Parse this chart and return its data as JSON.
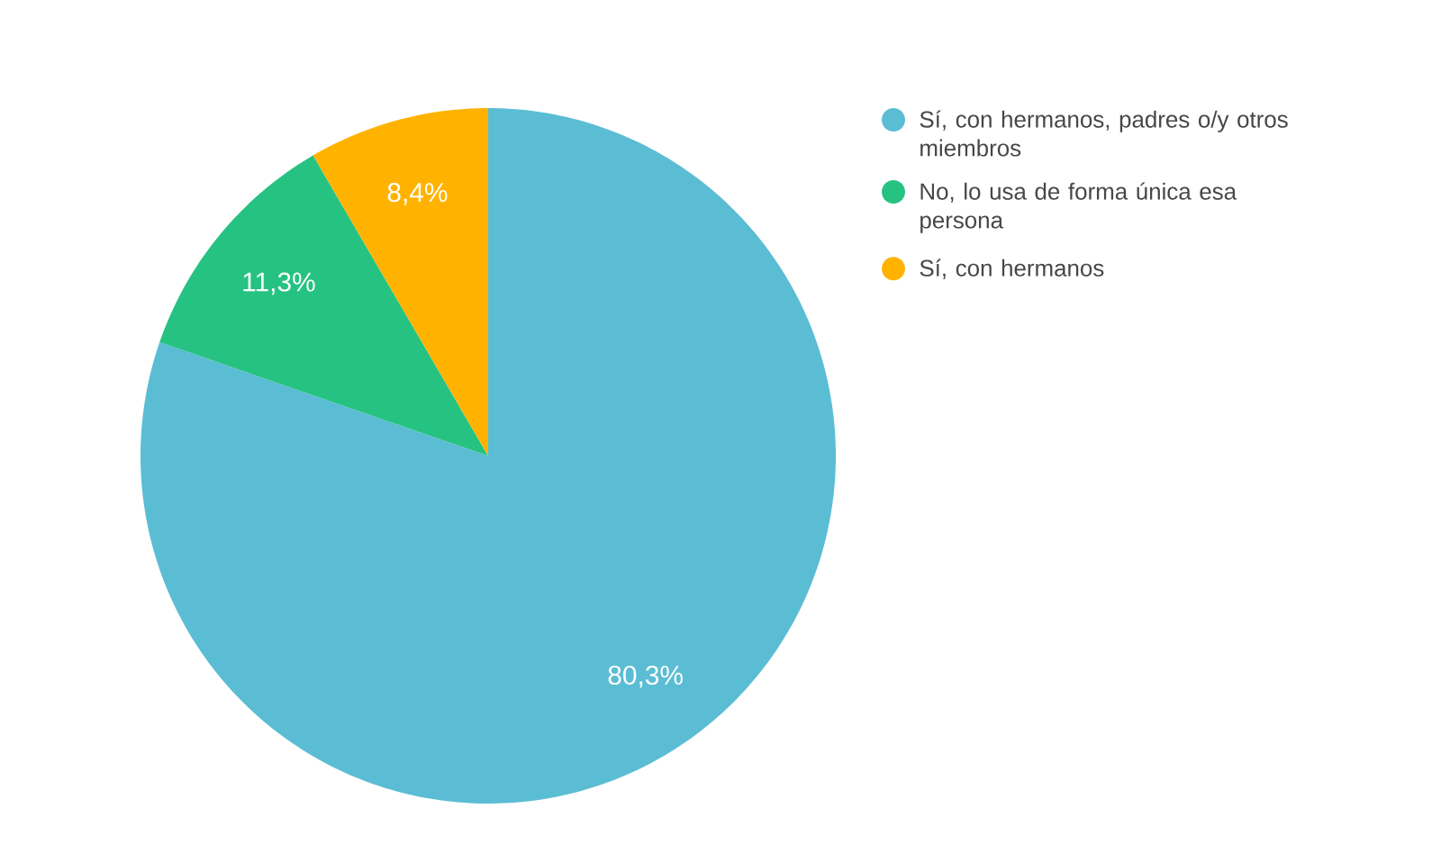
{
  "chart_data": {
    "type": "pie",
    "categories": [
      "Sí, con hermanos, padres o/y otros miembros",
      "No, lo usa de forma única esa persona",
      "Sí, con hermanos"
    ],
    "values": [
      80.3,
      11.3,
      8.4
    ],
    "colors": [
      "#5bbdd4",
      "#26c281",
      "#ffb300"
    ],
    "value_labels": [
      "80,3%",
      "11,3%",
      "8,4%"
    ],
    "legend": "right"
  }
}
